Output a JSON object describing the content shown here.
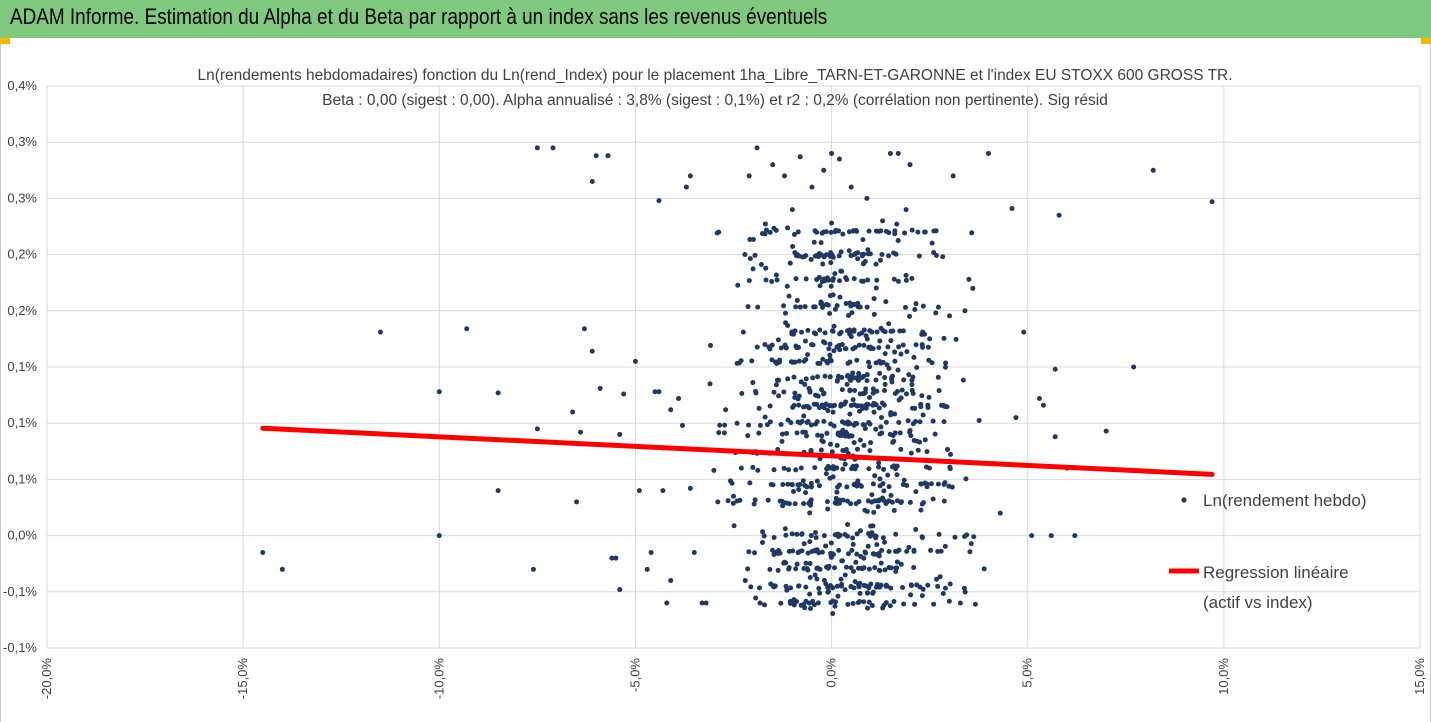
{
  "header": {
    "title": "ADAM Informe. Estimation du Alpha et du Beta par rapport à un index sans les revenus éventuels"
  },
  "colors": {
    "header_bg": "#7ec97e",
    "corner_accent": "#f5b800",
    "point": "#1f3864",
    "regression": "#ff0000",
    "grid": "#d9d9d9"
  },
  "chart_data": {
    "type": "scatter",
    "title": [
      "Ln(rendements hebdomadaires) fonction du Ln(rend_Index) pour le placement 1ha_Libre_TARN-ET-GARONNE et l'index EU STOXX 600 GROSS TR.",
      "Beta : 0,00 (sigest : 0,00). Alpha annualisé : 3,8% (sigest : 0,1%) et r2 : 0,2% (corrélation non pertinente). Sig résid"
    ],
    "xlabel": "",
    "ylabel": "",
    "xlim": [
      -20,
      15
    ],
    "ylim": [
      -0.1,
      0.4
    ],
    "x_ticks": [
      -20,
      -15,
      -10,
      -5,
      0,
      5,
      10,
      15
    ],
    "x_tick_labels": [
      "-20,0%",
      "-15,0%",
      "-10,0%",
      "-5,0%",
      "0,0%",
      "5,0%",
      "10,0%",
      "15,0%"
    ],
    "y_ticks": [
      0.4,
      0.35,
      0.3,
      0.25,
      0.2,
      0.15,
      0.1,
      0.05,
      0.0,
      -0.05,
      -0.1
    ],
    "y_tick_labels": [
      "0,4%",
      "0,3%",
      "0,3%",
      "0,2%",
      "0,2%",
      "0,1%",
      "0,1%",
      "0,1%",
      "0,0%",
      "-0,1%",
      "-0,1%"
    ],
    "grid": true,
    "legend_position": "right",
    "legend": [
      "Ln(rendement hebdo)",
      "Regression linéaire",
      "(actif vs index)"
    ],
    "regression": {
      "x": [
        -14.5,
        9.7
      ],
      "y": [
        0.0955,
        0.0545
      ]
    },
    "series": [
      {
        "name": "Ln(rendement hebdo)",
        "points": [
          [
            -14.5,
            -0.015
          ],
          [
            -14.0,
            -0.03
          ],
          [
            -11.5,
            0.181
          ],
          [
            -10.0,
            0.128
          ],
          [
            -10.0,
            0.0
          ],
          [
            -9.3,
            0.184
          ],
          [
            -8.5,
            0.127
          ],
          [
            -8.5,
            0.04
          ],
          [
            -7.6,
            -0.03
          ],
          [
            -7.5,
            0.345
          ],
          [
            -7.5,
            0.095
          ],
          [
            -7.1,
            0.345
          ],
          [
            -6.6,
            0.11
          ],
          [
            -6.5,
            0.03
          ],
          [
            -6.4,
            0.092
          ],
          [
            -6.3,
            0.184
          ],
          [
            -6.1,
            0.164
          ],
          [
            -6.1,
            0.315
          ],
          [
            -6.0,
            0.338
          ],
          [
            -5.9,
            0.131
          ],
          [
            -5.7,
            0.338
          ],
          [
            -5.6,
            -0.02
          ],
          [
            -5.5,
            -0.02
          ],
          [
            -5.4,
            -0.048
          ],
          [
            -5.4,
            0.09
          ],
          [
            -5.3,
            0.126
          ],
          [
            -5.0,
            0.155
          ],
          [
            -4.9,
            0.04
          ],
          [
            -4.7,
            -0.03
          ],
          [
            -4.6,
            -0.015
          ],
          [
            -4.5,
            0.128
          ],
          [
            -4.4,
            0.128
          ],
          [
            -4.4,
            0.298
          ],
          [
            -4.3,
            0.078
          ],
          [
            -4.3,
            0.04
          ],
          [
            -4.2,
            -0.06
          ],
          [
            -4.1,
            -0.04
          ],
          [
            -4.1,
            0.112
          ],
          [
            -3.9,
            0.122
          ],
          [
            -3.8,
            0.098
          ],
          [
            -3.7,
            0.31
          ],
          [
            -3.6,
            0.32
          ],
          [
            -3.6,
            0.042
          ],
          [
            -3.5,
            -0.015
          ],
          [
            -3.3,
            -0.06
          ],
          [
            -3.2,
            -0.06
          ],
          [
            -3.1,
            0.135
          ],
          [
            -3.0,
            0.058
          ],
          [
            -2.9,
            0.03
          ],
          [
            -2.7,
            0.112
          ],
          [
            -2.5,
            0.035
          ],
          [
            -2.3,
            0.06
          ],
          [
            -2.2,
            -0.04
          ],
          [
            -2.1,
            0.32
          ],
          [
            -1.9,
            0.345
          ],
          [
            -1.7,
            0.17
          ],
          [
            -1.5,
            0.33
          ],
          [
            -1.2,
            0.32
          ],
          [
            -1.0,
            0.29
          ],
          [
            -0.8,
            0.337
          ],
          [
            -0.5,
            0.31
          ],
          [
            -0.2,
            0.325
          ],
          [
            0.0,
            0.34
          ],
          [
            0.2,
            0.335
          ],
          [
            0.5,
            0.31
          ],
          [
            0.9,
            0.3
          ],
          [
            1.3,
            0.28
          ],
          [
            1.5,
            0.34
          ],
          [
            1.7,
            0.34
          ],
          [
            1.9,
            0.29
          ],
          [
            2.0,
            0.33
          ],
          [
            2.2,
            0.27
          ],
          [
            2.5,
            0.175
          ],
          [
            3.1,
            0.32
          ],
          [
            3.4,
            0.2
          ],
          [
            3.5,
            0.228
          ],
          [
            3.6,
            0.22
          ],
          [
            4.0,
            0.34
          ],
          [
            4.3,
            0.02
          ],
          [
            4.6,
            0.291
          ],
          [
            4.7,
            0.105
          ],
          [
            4.9,
            0.181
          ],
          [
            5.1,
            0.0
          ],
          [
            5.3,
            0.122
          ],
          [
            5.4,
            0.116
          ],
          [
            5.6,
            0.0
          ],
          [
            5.7,
            0.148
          ],
          [
            5.7,
            0.088
          ],
          [
            5.8,
            0.285
          ],
          [
            6.0,
            0.06
          ],
          [
            6.2,
            0.0
          ],
          [
            7.0,
            0.093
          ],
          [
            7.7,
            0.15
          ],
          [
            8.2,
            0.325
          ],
          [
            9.7,
            0.297
          ]
        ]
      }
    ]
  }
}
